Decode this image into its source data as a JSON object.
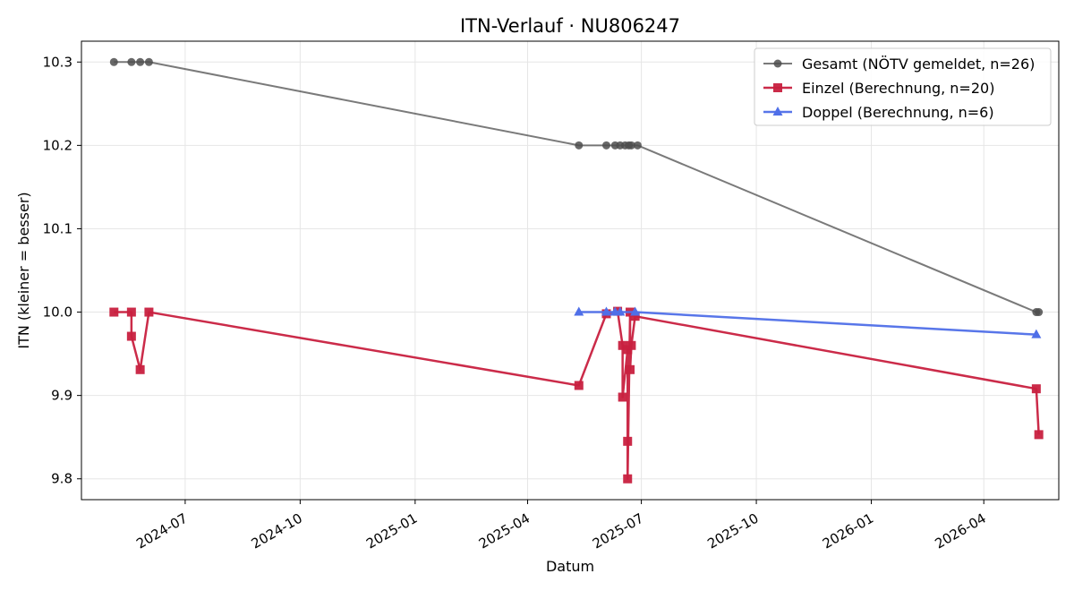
{
  "chart_data": {
    "type": "line",
    "title": "ITN-Verlauf · NU806247",
    "xlabel": "Datum",
    "ylabel": "ITN  (kleiner = besser)",
    "xlim": [
      "2024-04-09",
      "2026-05-31"
    ],
    "ylim": [
      9.775,
      10.325
    ],
    "x_ticks": [
      "2024-07",
      "2024-10",
      "2025-01",
      "2025-04",
      "2025-07",
      "2025-10",
      "2026-01",
      "2026-04"
    ],
    "y_ticks": [
      "9.8",
      "9.9",
      "10.0",
      "10.1",
      "10.2",
      "10.3"
    ],
    "grid": true,
    "legend_position": "top-right",
    "series": [
      {
        "name": "Gesamt (NÖTV gemeldet, n=26)",
        "color": "#4d4d4d",
        "marker": "circle",
        "points": [
          {
            "x": "2024-05-05",
            "y": 10.3
          },
          {
            "x": "2024-05-19",
            "y": 10.3
          },
          {
            "x": "2024-05-26",
            "y": 10.3
          },
          {
            "x": "2024-06-02",
            "y": 10.3
          },
          {
            "x": "2025-05-12",
            "y": 10.2
          },
          {
            "x": "2025-06-03",
            "y": 10.2
          },
          {
            "x": "2025-06-10",
            "y": 10.2
          },
          {
            "x": "2025-06-14",
            "y": 10.2
          },
          {
            "x": "2025-06-18",
            "y": 10.2
          },
          {
            "x": "2025-06-21",
            "y": 10.2
          },
          {
            "x": "2025-06-23",
            "y": 10.2
          },
          {
            "x": "2025-06-28",
            "y": 10.2
          },
          {
            "x": "2026-05-13",
            "y": 10.0
          },
          {
            "x": "2026-05-15",
            "y": 10.0
          }
        ]
      },
      {
        "name": "Einzel (Berechnung, n=20)",
        "color": "#c8203f",
        "marker": "square",
        "points": [
          {
            "x": "2024-05-05",
            "y": 10.0
          },
          {
            "x": "2024-05-19",
            "y": 10.0
          },
          {
            "x": "2024-05-19",
            "y": 9.971
          },
          {
            "x": "2024-05-26",
            "y": 9.931
          },
          {
            "x": "2024-06-02",
            "y": 10.0
          },
          {
            "x": "2025-05-12",
            "y": 9.912
          },
          {
            "x": "2025-06-03",
            "y": 9.998
          },
          {
            "x": "2025-06-12",
            "y": 10.001
          },
          {
            "x": "2025-06-16",
            "y": 9.96
          },
          {
            "x": "2025-06-16",
            "y": 9.898
          },
          {
            "x": "2025-06-20",
            "y": 9.955
          },
          {
            "x": "2025-06-20",
            "y": 9.845
          },
          {
            "x": "2025-06-20",
            "y": 9.8
          },
          {
            "x": "2025-06-22",
            "y": 10.0
          },
          {
            "x": "2025-06-22",
            "y": 9.931
          },
          {
            "x": "2025-06-23",
            "y": 9.96
          },
          {
            "x": "2025-06-26",
            "y": 9.995
          },
          {
            "x": "2026-05-13",
            "y": 9.908
          },
          {
            "x": "2026-05-15",
            "y": 9.853
          }
        ]
      },
      {
        "name": "Doppel (Berechnung, n=6)",
        "color": "#4f6fe8",
        "marker": "triangle",
        "points": [
          {
            "x": "2025-05-12",
            "y": 10.0
          },
          {
            "x": "2025-06-03",
            "y": 10.0
          },
          {
            "x": "2025-06-10",
            "y": 10.0
          },
          {
            "x": "2025-06-14",
            "y": 10.0
          },
          {
            "x": "2025-06-26",
            "y": 10.0
          },
          {
            "x": "2026-05-13",
            "y": 9.973
          }
        ]
      }
    ]
  }
}
